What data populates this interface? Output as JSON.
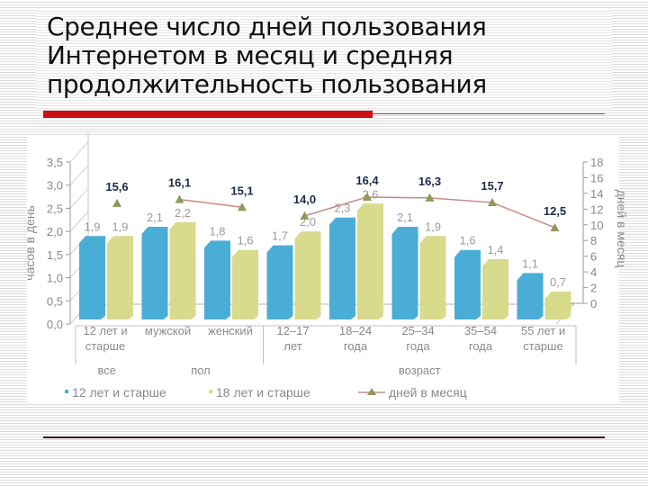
{
  "slide": {
    "title_lines": [
      "Среднее число дней пользования",
      "Интернетом в месяц и средняя",
      "продолжительность пользования"
    ]
  },
  "chart_data": {
    "type": "bar",
    "title": "Среднее число дней пользования Интернетом в месяц и средняя продолжительность пользования",
    "ylabel": "часов в день",
    "y2label": "дней в месяц",
    "ylim": [
      0,
      3.5
    ],
    "y2lim": [
      0,
      18
    ],
    "yticks": [
      "0,0",
      "0,5",
      "1,0",
      "1,5",
      "2,0",
      "2,5",
      "3,0",
      "3,5"
    ],
    "y2ticks": [
      "0",
      "2",
      "4",
      "6",
      "8",
      "10",
      "12",
      "14",
      "16",
      "18"
    ],
    "categories": [
      "12 лет и старше",
      "мужской",
      "женский",
      "12–17 лет",
      "18–24 года",
      "25–34 года",
      "35–54 года",
      "55 лет и старше"
    ],
    "category_labels": [
      [
        "12 лет и",
        "старше"
      ],
      [
        "мужской"
      ],
      [
        "женский"
      ],
      [
        "12–17",
        "лет"
      ],
      [
        "18–24",
        "года"
      ],
      [
        "25–34",
        "года"
      ],
      [
        "35–54",
        "года"
      ],
      [
        "55 лет и",
        "старше"
      ]
    ],
    "category_groups": [
      {
        "label": "все",
        "span": [
          0,
          0
        ]
      },
      {
        "label": "пол",
        "span": [
          1,
          2
        ]
      },
      {
        "label": "возраст",
        "span": [
          3,
          7
        ]
      }
    ],
    "series": [
      {
        "name": "12 лет и старше",
        "type": "bar",
        "axis": "left",
        "color": "#4aadd6",
        "values": [
          1.9,
          2.1,
          1.8,
          1.7,
          2.3,
          2.1,
          1.6,
          1.1
        ],
        "labels": [
          "1,9",
          "2,1",
          "1,8",
          "1,7",
          "2,3",
          "2,1",
          "1,6",
          "1,1"
        ]
      },
      {
        "name": "18 лет и старше",
        "type": "bar",
        "axis": "left",
        "color": "#d8da8c",
        "values": [
          1.9,
          2.2,
          1.6,
          2.0,
          2.6,
          1.9,
          1.4,
          0.7
        ],
        "labels": [
          "1,9",
          "2,2",
          "1,6",
          "2,0",
          "2,6",
          "1,9",
          "1,4",
          "0,7"
        ]
      },
      {
        "name": "дней в месяц",
        "type": "line",
        "axis": "right",
        "color": "#c98a80",
        "marker_color": "#8c9a58",
        "values": [
          15.6,
          16.1,
          15.1,
          14.0,
          16.4,
          16.3,
          15.7,
          12.5
        ],
        "labels": [
          "15,6",
          "16,1",
          "15,1",
          "14,0",
          "16,4",
          "16,3",
          "15,7",
          "12,5"
        ]
      }
    ],
    "legend": {
      "position": "bottom",
      "items": [
        "12 лет и старше",
        "18 лет и старше",
        "дней в месяц"
      ]
    },
    "grid": false
  }
}
